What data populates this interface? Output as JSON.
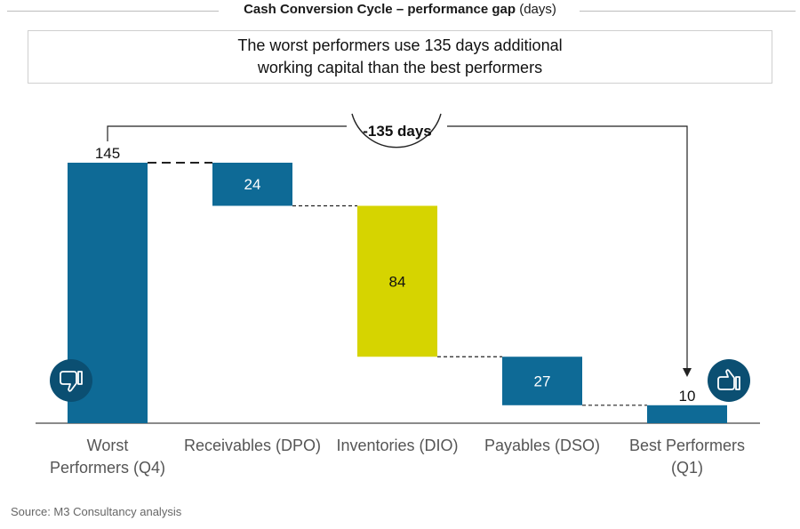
{
  "chart_data": {
    "type": "waterfall",
    "title": "Cash Conversion Cycle – performance gap",
    "title_unit": "(days)",
    "categories": [
      [
        "Worst",
        "Performers (Q4)"
      ],
      [
        "Receivables (DPO)"
      ],
      [
        "Inventories (DIO)"
      ],
      [
        "Payables (DSO)"
      ],
      [
        "Best Performers",
        "(Q1)"
      ]
    ],
    "values": [
      145,
      24,
      84,
      27,
      10
    ],
    "value_labels": [
      "145",
      "24",
      "84",
      "27",
      "10"
    ],
    "bar_kinds": [
      "total",
      "decrease",
      "decrease",
      "decrease",
      "total"
    ],
    "colors": {
      "blue": "#0e6a96",
      "yellow": "#d6d400",
      "dark": "#0b4f72",
      "line": "#222222"
    },
    "bar_colors": [
      "#0e6a96",
      "#0e6a96",
      "#d6d400",
      "#0e6a96",
      "#0e6a96"
    ],
    "ylim": [
      0,
      145
    ],
    "gap_annotation": "-135 days",
    "icons": {
      "worst": "thumbs-down-icon",
      "best": "thumbs-up-icon"
    }
  },
  "callout": {
    "line1": "The worst performers use 135 days additional",
    "line2": "working capital than the best performers"
  },
  "source": "Source: M3 Consultancy analysis"
}
